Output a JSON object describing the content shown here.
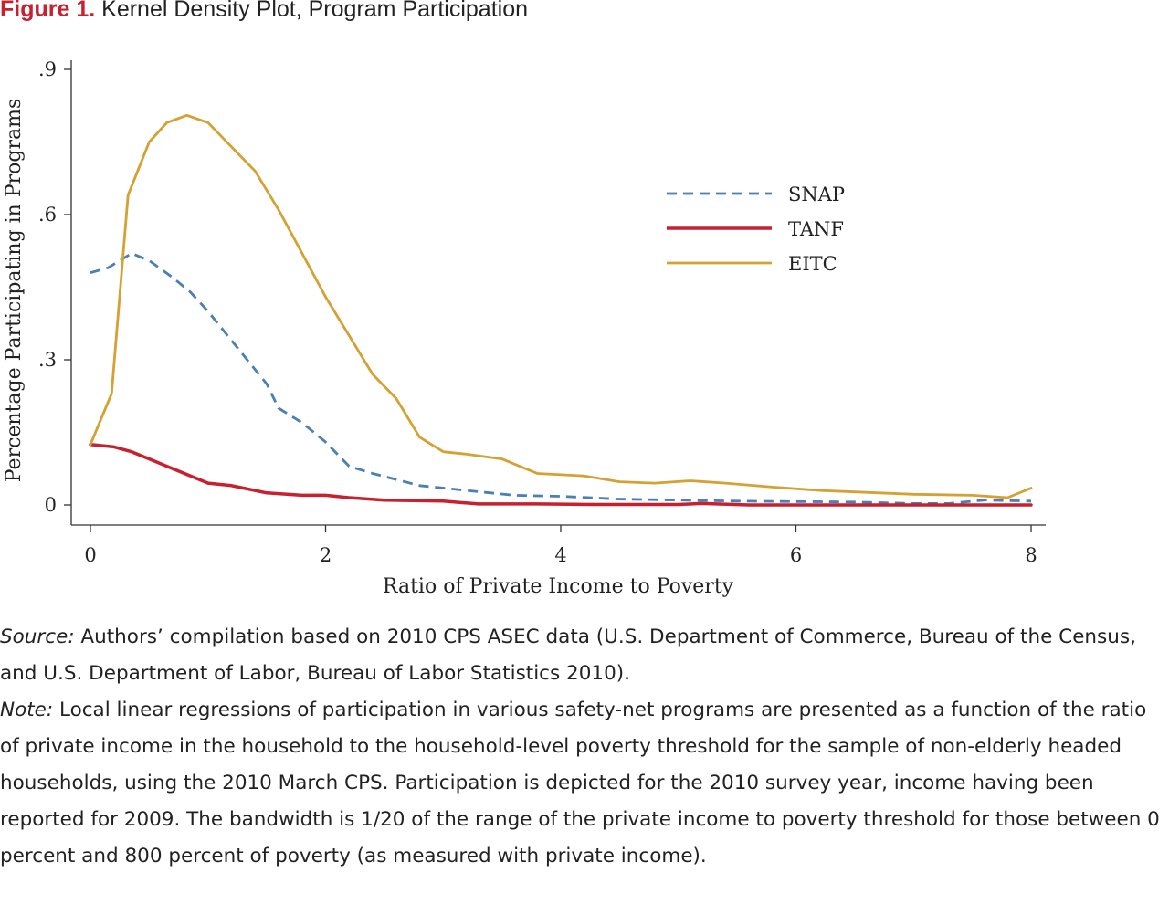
{
  "figure": {
    "label": "Figure 1.",
    "title": "Kernel Density Plot, Program Participation"
  },
  "chart_data": {
    "type": "line",
    "xlabel": "Ratio of Private Income to Poverty",
    "ylabel": "Percentage Participating in Programs",
    "xlim": [
      0,
      8
    ],
    "ylim": [
      0,
      0.9
    ],
    "xticks": [
      0,
      2,
      4,
      6,
      8
    ],
    "xtick_labels": [
      "0",
      "2",
      "4",
      "6",
      "8"
    ],
    "yticks": [
      0,
      0.3,
      0.6,
      0.9
    ],
    "ytick_labels": [
      "0",
      ".3",
      ".6",
      ".9"
    ],
    "legend_position": "top-right",
    "grid": false,
    "series": [
      {
        "name": "SNAP",
        "color": "#4a7fb8",
        "style": "dashed",
        "points": [
          [
            0,
            0.48
          ],
          [
            0.15,
            0.49
          ],
          [
            0.35,
            0.52
          ],
          [
            0.5,
            0.505
          ],
          [
            0.7,
            0.47
          ],
          [
            0.85,
            0.44
          ],
          [
            1.0,
            0.4
          ],
          [
            1.2,
            0.34
          ],
          [
            1.5,
            0.25
          ],
          [
            1.6,
            0.2
          ],
          [
            1.8,
            0.17
          ],
          [
            2.0,
            0.13
          ],
          [
            2.2,
            0.08
          ],
          [
            2.4,
            0.065
          ],
          [
            2.8,
            0.04
          ],
          [
            3.2,
            0.03
          ],
          [
            3.6,
            0.02
          ],
          [
            4.0,
            0.018
          ],
          [
            4.5,
            0.012
          ],
          [
            5.0,
            0.01
          ],
          [
            5.5,
            0.008
          ],
          [
            6.0,
            0.007
          ],
          [
            6.5,
            0.006
          ],
          [
            7.0,
            0.003
          ],
          [
            7.3,
            0.003
          ],
          [
            7.6,
            0.01
          ],
          [
            8.0,
            0.008
          ]
        ]
      },
      {
        "name": "TANF",
        "color": "#c8202e",
        "style": "solid",
        "points": [
          [
            0,
            0.125
          ],
          [
            0.2,
            0.12
          ],
          [
            0.35,
            0.11
          ],
          [
            0.5,
            0.095
          ],
          [
            0.7,
            0.075
          ],
          [
            0.8,
            0.065
          ],
          [
            1.0,
            0.045
          ],
          [
            1.2,
            0.04
          ],
          [
            1.3,
            0.035
          ],
          [
            1.5,
            0.025
          ],
          [
            1.8,
            0.02
          ],
          [
            2.0,
            0.02
          ],
          [
            2.2,
            0.015
          ],
          [
            2.5,
            0.01
          ],
          [
            3.0,
            0.008
          ],
          [
            3.3,
            0.002
          ],
          [
            3.8,
            0.002
          ],
          [
            4.3,
            0.001
          ],
          [
            5.0,
            0.001
          ],
          [
            5.2,
            0.003
          ],
          [
            5.6,
            0
          ],
          [
            6.0,
            0
          ],
          [
            7.0,
            0
          ],
          [
            8.0,
            0
          ]
        ]
      },
      {
        "name": "EITC",
        "color": "#d4a132",
        "style": "solid",
        "points": [
          [
            0,
            0.125
          ],
          [
            0.18,
            0.23
          ],
          [
            0.32,
            0.64
          ],
          [
            0.5,
            0.75
          ],
          [
            0.65,
            0.79
          ],
          [
            0.82,
            0.805
          ],
          [
            1.0,
            0.79
          ],
          [
            1.2,
            0.74
          ],
          [
            1.4,
            0.69
          ],
          [
            1.6,
            0.61
          ],
          [
            1.8,
            0.52
          ],
          [
            2.0,
            0.43
          ],
          [
            2.2,
            0.35
          ],
          [
            2.4,
            0.27
          ],
          [
            2.6,
            0.22
          ],
          [
            2.8,
            0.14
          ],
          [
            3.0,
            0.11
          ],
          [
            3.2,
            0.105
          ],
          [
            3.5,
            0.095
          ],
          [
            3.8,
            0.065
          ],
          [
            4.2,
            0.06
          ],
          [
            4.5,
            0.048
          ],
          [
            4.8,
            0.045
          ],
          [
            5.1,
            0.05
          ],
          [
            5.4,
            0.045
          ],
          [
            5.8,
            0.037
          ],
          [
            6.2,
            0.03
          ],
          [
            6.5,
            0.027
          ],
          [
            7.0,
            0.022
          ],
          [
            7.5,
            0.02
          ],
          [
            7.8,
            0.015
          ],
          [
            8.0,
            0.035
          ]
        ]
      }
    ]
  },
  "caption": {
    "source_label": "Source:",
    "source_text": " Authors’ compilation based on 2010 CPS ASEC data (U.S. Department of Commerce, Bureau of the Census, and U.S. Department of Labor, Bureau of Labor Statistics 2010).",
    "note_label": "Note:",
    "note_text": " Local linear regressions of participation in various safety-net programs are presented as a function of the ratio of private income in the household to the household-level poverty threshold for the sample of non-elderly headed households, using the 2010 March CPS. Participation is depicted for the 2010 survey year, income having been reported for 2009. The bandwidth is 1/20 of the range of the private income to poverty threshold for those between 0 percent and 800 percent of poverty (as measured with private income)."
  }
}
